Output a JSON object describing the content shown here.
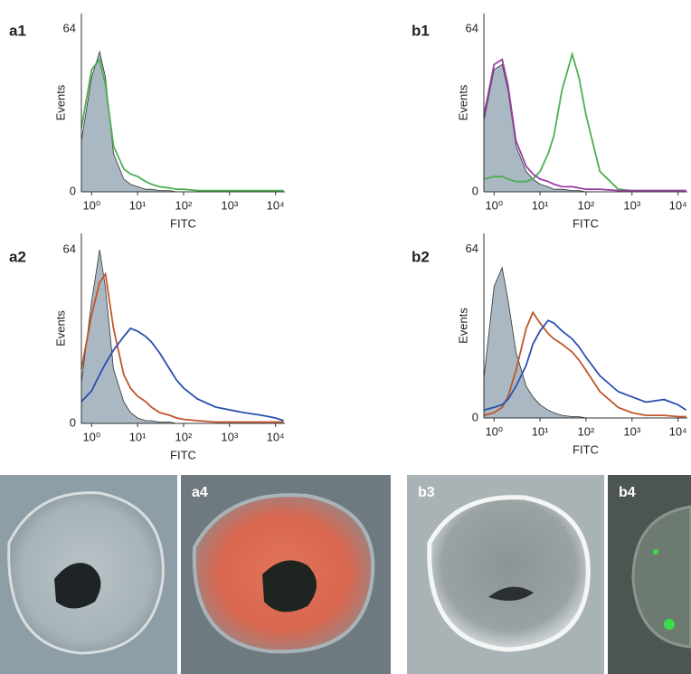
{
  "chart_data": [
    {
      "type": "line",
      "panel": "a1",
      "ylabel": "Events",
      "xlabel": "FITC",
      "xscale": "log",
      "xlim": [
        0.6,
        16000
      ],
      "ylim": [
        0,
        70
      ],
      "xticks": [
        {
          "value": 1,
          "label": "10⁰"
        },
        {
          "value": 10,
          "label": "10¹"
        },
        {
          "value": 100,
          "label": "10²"
        },
        {
          "value": 1000,
          "label": "10³"
        },
        {
          "value": 10000,
          "label": "10⁴"
        }
      ],
      "yticks": [
        0,
        64
      ],
      "x": [
        0.6,
        1,
        1.5,
        2,
        3,
        5,
        7,
        10,
        15,
        20,
        30,
        50,
        70,
        100,
        200,
        500,
        1000,
        2000,
        5000,
        10000,
        15000
      ],
      "series": [
        {
          "color": "#a9b8c3",
          "filled": true,
          "values": [
            20,
            45,
            55,
            45,
            15,
            5,
            3,
            2,
            1,
            1,
            0.5,
            0.5,
            0,
            0,
            0,
            0,
            0,
            0,
            0,
            0,
            0
          ]
        },
        {
          "color": "#4caf50",
          "values": [
            25,
            48,
            52,
            42,
            18,
            9,
            7,
            6,
            4,
            3,
            2,
            1.5,
            1,
            1,
            0.5,
            0.5,
            0.5,
            0.5,
            0.5,
            0.5,
            0.5
          ]
        }
      ]
    },
    {
      "type": "line",
      "panel": "b1",
      "ylabel": "Events",
      "xlabel": "FITC",
      "xscale": "log",
      "xlim": [
        0.6,
        16000
      ],
      "ylim": [
        0,
        70
      ],
      "xticks": [
        {
          "value": 1,
          "label": "10⁰"
        },
        {
          "value": 10,
          "label": "10¹"
        },
        {
          "value": 100,
          "label": "10²"
        },
        {
          "value": 1000,
          "label": "10³"
        },
        {
          "value": 10000,
          "label": "10⁴"
        }
      ],
      "yticks": [
        0,
        64
      ],
      "x": [
        0.6,
        1,
        1.5,
        2,
        3,
        5,
        7,
        10,
        15,
        20,
        30,
        50,
        70,
        100,
        200,
        500,
        1000,
        2000,
        5000,
        10000,
        15000
      ],
      "series": [
        {
          "color": "#a9b8c3",
          "filled": true,
          "values": [
            28,
            48,
            50,
            40,
            18,
            8,
            5,
            3,
            2,
            1,
            1,
            0.5,
            0.5,
            0,
            0,
            0,
            0,
            0,
            0,
            0,
            0
          ]
        },
        {
          "color": "#4caf50",
          "values": [
            5,
            6,
            6,
            5,
            4,
            4,
            5,
            8,
            15,
            22,
            40,
            54,
            45,
            30,
            8,
            1,
            0.5,
            0.5,
            0.5,
            0.5,
            0.5
          ]
        },
        {
          "color": "#9b3fa7",
          "values": [
            30,
            50,
            52,
            42,
            20,
            10,
            7,
            5,
            4,
            3,
            2,
            2,
            1.5,
            1,
            1,
            0.5,
            0.5,
            0.5,
            0.5,
            0.5,
            0.5
          ]
        }
      ]
    },
    {
      "type": "line",
      "panel": "a2",
      "ylabel": "Events",
      "xlabel": "FITC",
      "xscale": "log",
      "xlim": [
        0.6,
        16000
      ],
      "ylim": [
        0,
        70
      ],
      "xticks": [
        {
          "value": 1,
          "label": "10⁰"
        },
        {
          "value": 10,
          "label": "10¹"
        },
        {
          "value": 100,
          "label": "10²"
        },
        {
          "value": 1000,
          "label": "10³"
        },
        {
          "value": 10000,
          "label": "10⁴"
        }
      ],
      "yticks": [
        0,
        64
      ],
      "x": [
        0.6,
        1,
        1.5,
        2,
        3,
        5,
        7,
        10,
        15,
        20,
        30,
        50,
        70,
        100,
        200,
        500,
        1000,
        2000,
        5000,
        10000,
        15000
      ],
      "series": [
        {
          "color": "#a9b8c3",
          "filled": true,
          "values": [
            15,
            45,
            64,
            50,
            20,
            8,
            4,
            2,
            1,
            1,
            0.5,
            0.5,
            0,
            0,
            0,
            0,
            0,
            0,
            0,
            0,
            0
          ]
        },
        {
          "color": "#c0552a",
          "values": [
            20,
            40,
            52,
            55,
            35,
            18,
            13,
            10,
            8,
            6,
            4,
            3,
            2,
            1.5,
            1,
            0.5,
            0.5,
            0.5,
            0.5,
            0.5,
            0.5
          ]
        },
        {
          "color": "#2a4fb0",
          "values": [
            8,
            12,
            18,
            22,
            27,
            32,
            35,
            34,
            32,
            30,
            26,
            20,
            16,
            13,
            9,
            6,
            5,
            4,
            3,
            2,
            1
          ]
        }
      ]
    },
    {
      "type": "line",
      "panel": "b2",
      "ylabel": "Events",
      "xlabel": "FITC",
      "xscale": "log",
      "xlim": [
        0.6,
        16000
      ],
      "ylim": [
        0,
        70
      ],
      "xticks": [
        {
          "value": 1,
          "label": "10⁰"
        },
        {
          "value": 10,
          "label": "10¹"
        },
        {
          "value": 100,
          "label": "10²"
        },
        {
          "value": 1000,
          "label": "10³"
        },
        {
          "value": 10000,
          "label": "10⁴"
        }
      ],
      "yticks": [
        0,
        64
      ],
      "x": [
        0.6,
        1,
        1.5,
        2,
        3,
        5,
        7,
        10,
        15,
        20,
        30,
        50,
        70,
        100,
        200,
        500,
        1000,
        2000,
        5000,
        10000,
        15000
      ],
      "series": [
        {
          "color": "#a9b8c3",
          "filled": true,
          "values": [
            15,
            50,
            57,
            45,
            25,
            12,
            8,
            5,
            3,
            2,
            1,
            0.5,
            0.5,
            0,
            0,
            0,
            0,
            0,
            0,
            0,
            0
          ]
        },
        {
          "color": "#c0552a",
          "values": [
            1,
            2,
            4,
            8,
            18,
            34,
            40,
            36,
            32,
            30,
            28,
            25,
            22,
            18,
            10,
            4,
            2,
            1,
            1,
            0.5,
            0.5
          ]
        },
        {
          "color": "#2a4fb0",
          "values": [
            3,
            4,
            5,
            7,
            12,
            20,
            28,
            33,
            37,
            36,
            33,
            30,
            27,
            23,
            16,
            10,
            8,
            6,
            7,
            5,
            3
          ]
        }
      ]
    }
  ],
  "images": [
    {
      "label": "a4"
    },
    {
      "label": "b3"
    },
    {
      "label": "b4"
    }
  ]
}
